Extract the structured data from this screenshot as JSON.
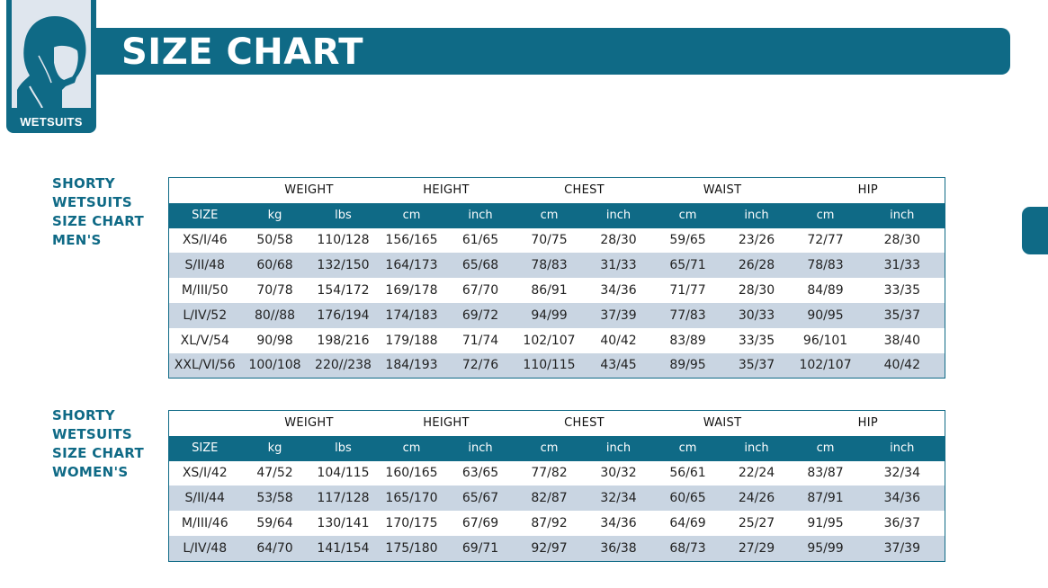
{
  "header": {
    "title": "SIZE CHART",
    "badge_label": "WETSUITS",
    "badge_icon": "hooded-head-icon"
  },
  "colors": {
    "accent": "#0f6a86",
    "row_alt": "#c9d5e2"
  },
  "groups": [
    "WEIGHT",
    "HEIGHT",
    "CHEST",
    "WAIST",
    "HIP"
  ],
  "subheaders": [
    "SIZE",
    "kg",
    "lbs",
    "cm",
    "inch",
    "cm",
    "inch",
    "cm",
    "inch",
    "cm",
    "inch"
  ],
  "men": {
    "label": [
      "SHORTY",
      "WETSUITS",
      "SIZE CHART",
      "MEN'S"
    ],
    "rows": [
      [
        "XS/I/46",
        "50/58",
        "110/128",
        "156/165",
        "61/65",
        "70/75",
        "28/30",
        "59/65",
        "23/26",
        "72/77",
        "28/30"
      ],
      [
        "S/II/48",
        "60/68",
        "132/150",
        "164/173",
        "65/68",
        "78/83",
        "31/33",
        "65/71",
        "26/28",
        "78/83",
        "31/33"
      ],
      [
        "M/III/50",
        "70/78",
        "154/172",
        "169/178",
        "67/70",
        "86/91",
        "34/36",
        "71/77",
        "28/30",
        "84/89",
        "33/35"
      ],
      [
        "L/IV/52",
        "80//88",
        "176/194",
        "174/183",
        "69/72",
        "94/99",
        "37/39",
        "77/83",
        "30/33",
        "90/95",
        "35/37"
      ],
      [
        "XL/V/54",
        "90/98",
        "198/216",
        "179/188",
        "71/74",
        "102/107",
        "40/42",
        "83/89",
        "33/35",
        "96/101",
        "38/40"
      ],
      [
        "XXL/VI/56",
        "100/108",
        "220//238",
        "184/193",
        "72/76",
        "110/115",
        "43/45",
        "89/95",
        "35/37",
        "102/107",
        "40/42"
      ]
    ]
  },
  "women": {
    "label": [
      "SHORTY",
      "WETSUITS",
      "SIZE CHART",
      "WOMEN'S"
    ],
    "rows": [
      [
        "XS/I/42",
        "47/52",
        "104/115",
        "160/165",
        "63/65",
        "77/82",
        "30/32",
        "56/61",
        "22/24",
        "83/87",
        "32/34"
      ],
      [
        "S/II/44",
        "53/58",
        "117/128",
        "165/170",
        "65/67",
        "82/87",
        "32/34",
        "60/65",
        "24/26",
        "87/91",
        "34/36"
      ],
      [
        "M/III/46",
        "59/64",
        "130/141",
        "170/175",
        "67/69",
        "87/92",
        "34/36",
        "64/69",
        "25/27",
        "91/95",
        "36/37"
      ],
      [
        "L/IV/48",
        "64/70",
        "141/154",
        "175/180",
        "69/71",
        "92/97",
        "36/38",
        "68/73",
        "27/29",
        "95/99",
        "37/39"
      ]
    ]
  }
}
